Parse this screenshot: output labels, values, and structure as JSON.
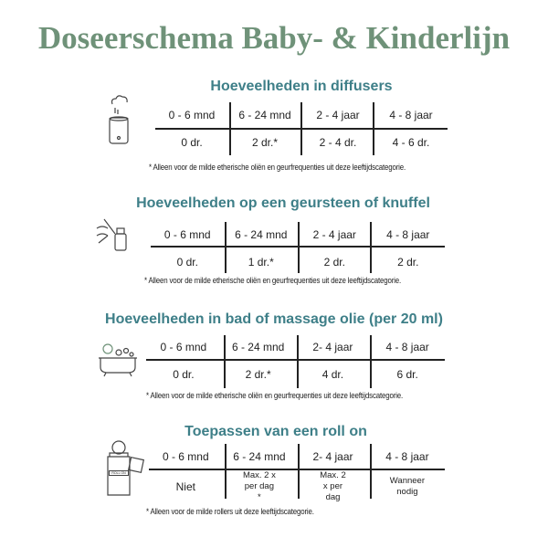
{
  "title": "Doseerschema Baby- & Kinderlijn",
  "sections": [
    {
      "heading": "Hoeveelheden in diffusers",
      "icon": "diffuser-icon",
      "headers": [
        "0 - 6 mnd",
        "6 - 24 mnd",
        "2 - 4  jaar",
        "4 - 8 jaar"
      ],
      "values": [
        "0  dr.",
        "2 dr.*",
        "2 - 4 dr.",
        "4 - 6  dr."
      ],
      "footnote": "* Alleen voor de milde etherische oliën en geurfrequenties uit deze leeftijdscategorie."
    },
    {
      "heading": "Hoeveelheden op een geursteen of knuffel",
      "icon": "dropper-bottle-icon",
      "headers": [
        "0 - 6 mnd",
        "6 - 24 mnd",
        "2 - 4  jaar",
        "4 - 8 jaar"
      ],
      "values": [
        "0  dr.",
        "1  dr.*",
        "2 dr.",
        "2 dr."
      ],
      "footnote": "* Alleen voor de milde etherische oliën en geurfrequenties uit deze leeftijdscategorie."
    },
    {
      "heading": "Hoeveelheden in bad of massage olie (per 20 ml)",
      "icon": "bathtub-icon",
      "headers": [
        "0 - 6 mnd",
        "6 - 24 mnd",
        "2- 4  jaar",
        "4 - 8 jaar"
      ],
      "values": [
        "0  dr.",
        "2  dr.*",
        "4 dr.",
        "6 dr."
      ],
      "footnote": "* Alleen voor de milde etherische oliën en geurfrequenties uit deze leeftijdscategorie."
    },
    {
      "heading": "Toepassen van een roll on",
      "icon": "roll-on-bottle-icon",
      "icon_label": "ROLL ON",
      "headers": [
        "0 - 6 mnd",
        "6 - 24 mnd",
        "2- 4  jaar",
        "4 - 8 jaar"
      ],
      "values": [
        "Niet",
        "Max. 2 x per dag *",
        "Max. 2 x per dag",
        "Wanneer nodig"
      ],
      "footnote": "* Alleen voor de milde rollers uit deze leeftijdscategorie."
    }
  ]
}
